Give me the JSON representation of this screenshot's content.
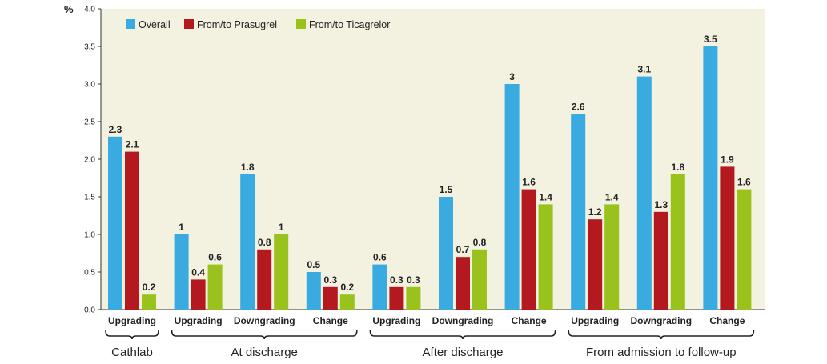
{
  "chart_data": {
    "type": "bar",
    "ylabel": "%",
    "ylim": [
      0,
      4.0
    ],
    "yticks": [
      "0.0",
      "0.5",
      "1.0",
      "1.5",
      "2.0",
      "2.5",
      "3.0",
      "3.5",
      "4.0"
    ],
    "grid": false,
    "legend_position": "top-left",
    "categories": [
      "Upgrading",
      "Upgrading",
      "Downgrading",
      "Change",
      "Upgrading",
      "Downgrading",
      "Change",
      "Upgrading",
      "Downgrading",
      "Change"
    ],
    "groups": [
      {
        "label": "Cathlab",
        "from": 0,
        "to": 0
      },
      {
        "label": "At discharge",
        "from": 1,
        "to": 3
      },
      {
        "label": "After discharge",
        "from": 4,
        "to": 6
      },
      {
        "label": "From admission to follow-up",
        "from": 7,
        "to": 9
      }
    ],
    "series": [
      {
        "name": "Overall",
        "color": "#3aabe0",
        "values": [
          2.3,
          1,
          1.8,
          0.5,
          0.6,
          1.5,
          3,
          2.6,
          3.1,
          3.5
        ],
        "labels": [
          "2.3",
          "1",
          "1.8",
          "0.5",
          "0.6",
          "1.5",
          "3",
          "2.6",
          "3.1",
          "3.5"
        ]
      },
      {
        "name": "From/to Prasugrel",
        "color": "#b3191e",
        "values": [
          2.1,
          0.4,
          0.8,
          0.3,
          0.3,
          0.7,
          1.6,
          1.2,
          1.3,
          1.9
        ],
        "labels": [
          "2.1",
          "0.4",
          "0.8",
          "0.3",
          "0.3",
          "0.7",
          "1.6",
          "1.2",
          "1.3",
          "1.9"
        ]
      },
      {
        "name": "From/to Ticagrelor",
        "color": "#99c31c",
        "values": [
          0.2,
          0.6,
          1,
          0.2,
          0.3,
          0.8,
          1.4,
          1.4,
          1.8,
          1.6
        ],
        "labels": [
          "0.2",
          "0.6",
          "1",
          "0.2",
          "0.3",
          "0.8",
          "1.4",
          "1.4",
          "1.8",
          "1.6"
        ]
      }
    ]
  },
  "colors": {
    "plot_background": "#f3f1df",
    "axis": "#333333"
  }
}
